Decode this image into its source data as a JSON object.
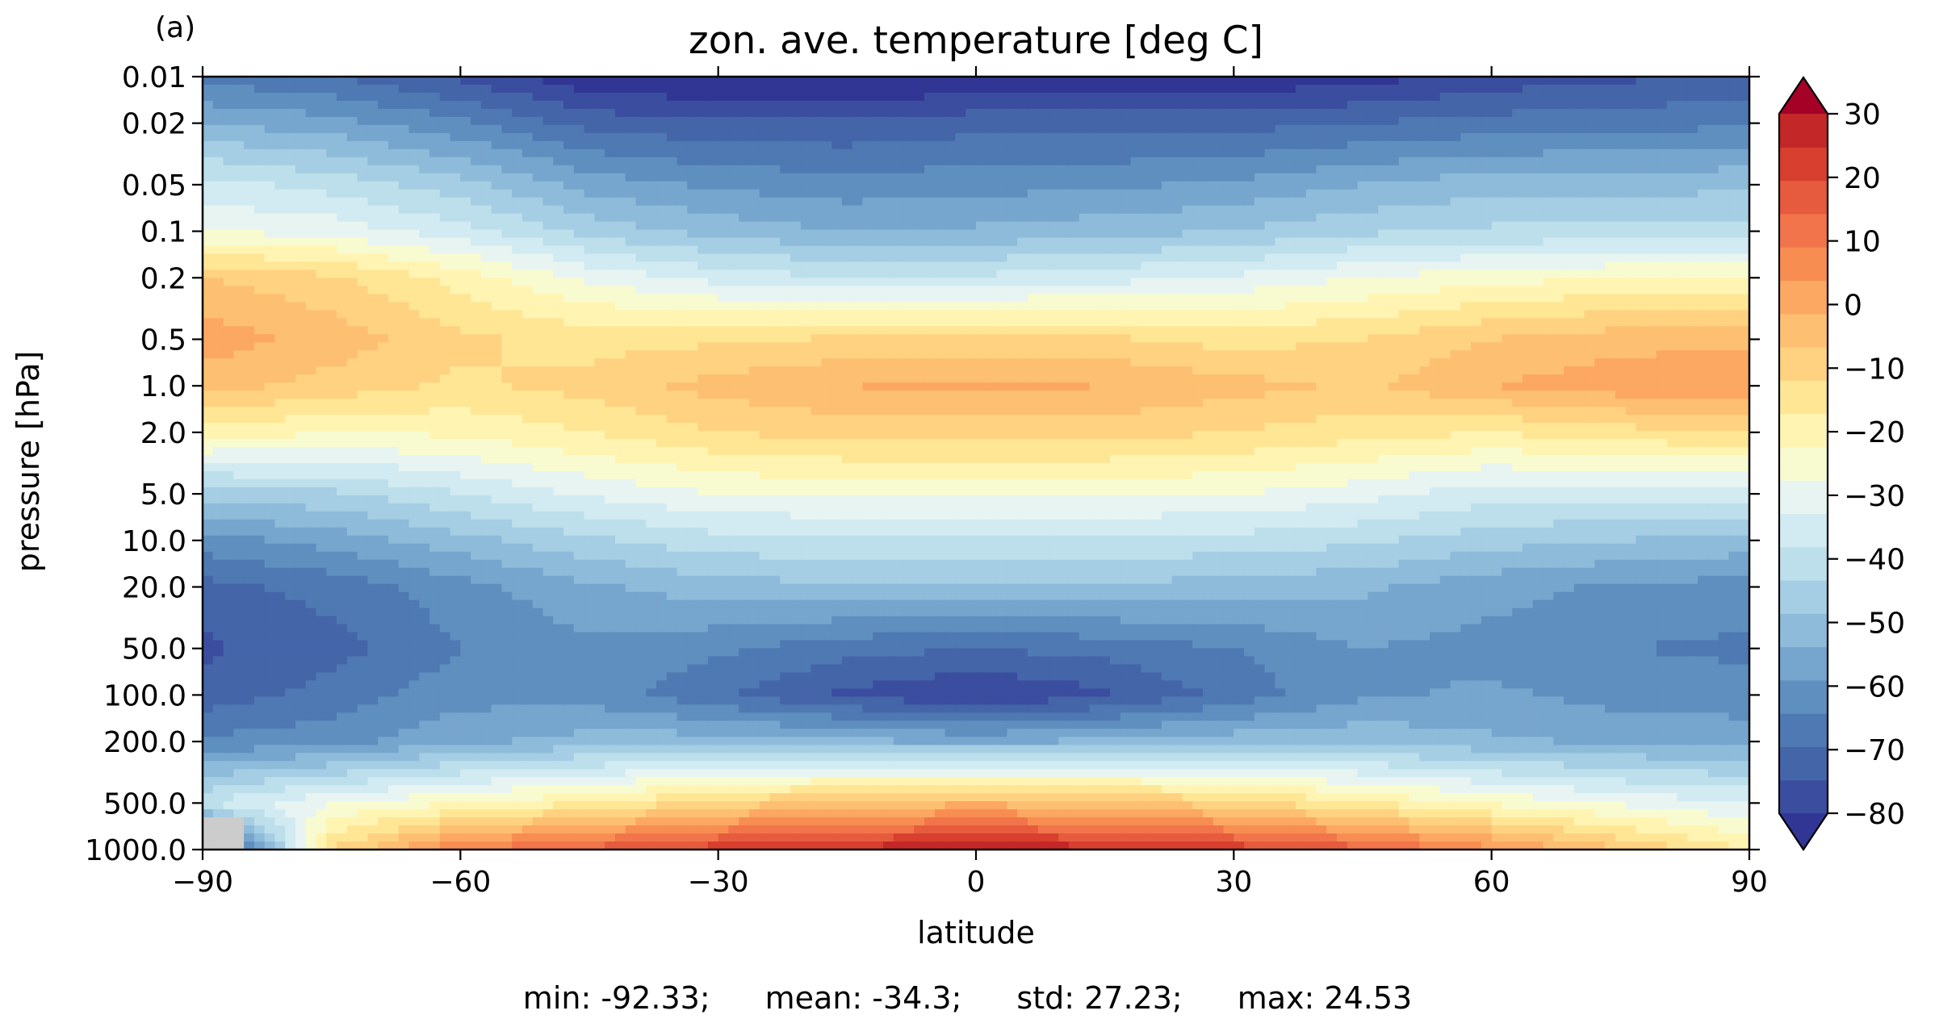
{
  "panel_label": "(a)",
  "stats": [
    {
      "text": "min: -92.33;"
    },
    {
      "text": "mean: -34.3;"
    },
    {
      "text": "std: 27.23;"
    },
    {
      "text": "max: 24.53"
    }
  ],
  "colors": {
    "palette": [
      "#313695",
      "#3b4d9f",
      "#4565a9",
      "#4f79b3",
      "#5f8fbf",
      "#76a5cd",
      "#8dbbd9",
      "#a5cde3",
      "#bcdfeb",
      "#d2ebf2",
      "#e7f4f2",
      "#f8fbd0",
      "#fff4b1",
      "#fee695",
      "#fed281",
      "#fdbf71",
      "#fca762",
      "#f88d52",
      "#f2744a",
      "#e65a3d",
      "#d83f2e",
      "#c42727",
      "#a50026"
    ],
    "missing": "#cccccc"
  },
  "chart_data": {
    "type": "heatmap",
    "subtype": "filled-contour",
    "title": "zon. ave. temperature [deg C]",
    "xlabel": "latitude",
    "ylabel": "pressure [hPa]",
    "x_ticks": [
      "−90",
      "−60",
      "−30",
      "0",
      "30",
      "60",
      "90"
    ],
    "x_tick_values": [
      -90,
      -60,
      -30,
      0,
      30,
      60,
      90
    ],
    "xlim": [
      -90,
      90
    ],
    "y_ticks": [
      "0.01",
      "0.02",
      "0.05",
      "0.1",
      "0.2",
      "0.5",
      "1.0",
      "2.0",
      "5.0",
      "10.0",
      "20.0",
      "50.0",
      "100.0",
      "200.0",
      "500.0",
      "1000.0"
    ],
    "y_tick_values": [
      0.01,
      0.02,
      0.05,
      0.1,
      0.2,
      0.5,
      1,
      2,
      5,
      10,
      20,
      50,
      100,
      200,
      500,
      1000
    ],
    "ylim": [
      1000,
      0.01
    ],
    "y_scale": "log",
    "y_inverted": true,
    "colorbar": {
      "ticks": [
        "30",
        "20",
        "10",
        "0",
        "−10",
        "−20",
        "−30",
        "−40",
        "−50",
        "−60",
        "−70",
        "−80"
      ],
      "tick_values": [
        30,
        20,
        10,
        0,
        -10,
        -20,
        -30,
        -40,
        -50,
        -60,
        -70,
        -80
      ],
      "range": [
        -80,
        30
      ],
      "level_step": 5,
      "extend": "both",
      "colormap": "RdYlBu_r"
    },
    "stats": {
      "min": -92.33,
      "mean": -34.3,
      "std": 27.23,
      "max": 24.53
    },
    "field": {
      "lat": [
        -90,
        -75,
        -60,
        -45,
        -30,
        -15,
        0,
        15,
        30,
        45,
        60,
        75,
        90
      ],
      "pressure": [
        0.01,
        0.02,
        0.05,
        0.1,
        0.2,
        0.5,
        1,
        2,
        5,
        10,
        20,
        50,
        100,
        200,
        500,
        1000
      ],
      "temperature": [
        [
          -67,
          -70,
          -76,
          -84,
          -86,
          -86,
          -85,
          -85,
          -84,
          -82,
          -78,
          -76,
          -74
        ],
        [
          -55,
          -58,
          -64,
          -72,
          -74,
          -74,
          -72,
          -72,
          -72,
          -70,
          -68,
          -67,
          -66
        ],
        [
          -38,
          -42,
          -48,
          -57,
          -61,
          -63,
          -62,
          -61,
          -59,
          -55,
          -52,
          -52,
          -51
        ],
        [
          -30,
          -32,
          -38,
          -47,
          -52,
          -55,
          -54,
          -52,
          -50,
          -46,
          -44,
          -44,
          -44
        ],
        [
          -10,
          -14,
          -22,
          -31,
          -37,
          -40,
          -39,
          -37,
          -34,
          -30,
          -27,
          -25,
          -24
        ],
        [
          -2,
          -7,
          -14,
          -17,
          -16,
          -14,
          -13,
          -14,
          -17,
          -15,
          -10,
          -7,
          -6
        ],
        [
          -8,
          -12,
          -16,
          -13,
          -8,
          -5,
          -4,
          -5,
          -8,
          -11,
          -5,
          -2,
          0
        ],
        [
          -22,
          -25,
          -24,
          -20,
          -15,
          -13,
          -13,
          -13,
          -15,
          -18,
          -20,
          -17,
          -15
        ],
        [
          -48,
          -46,
          -40,
          -34,
          -30,
          -29,
          -29,
          -29,
          -30,
          -33,
          -38,
          -38,
          -38
        ],
        [
          -62,
          -58,
          -52,
          -46,
          -42,
          -41,
          -41,
          -41,
          -42,
          -44,
          -48,
          -50,
          -52
        ],
        [
          -72,
          -68,
          -62,
          -56,
          -52,
          -51,
          -51,
          -51,
          -52,
          -54,
          -58,
          -61,
          -62
        ],
        [
          -76,
          -72,
          -65,
          -61,
          -64,
          -68,
          -70,
          -68,
          -65,
          -60,
          -62,
          -65,
          -66
        ],
        [
          -73,
          -68,
          -62,
          -62,
          -69,
          -76,
          -80,
          -76,
          -68,
          -61,
          -59,
          -62,
          -63
        ],
        [
          -64,
          -62,
          -56,
          -53,
          -52,
          -54,
          -56,
          -54,
          -52,
          -51,
          -54,
          -56,
          -57
        ],
        [
          -40,
          -30,
          -25,
          -20,
          -13,
          -8,
          -6,
          -8,
          -13,
          -20,
          -26,
          -31,
          -35
        ],
        [
          -93,
          -15,
          5,
          12,
          18,
          22,
          24,
          22,
          18,
          12,
          2,
          -10,
          -20
        ]
      ]
    }
  }
}
